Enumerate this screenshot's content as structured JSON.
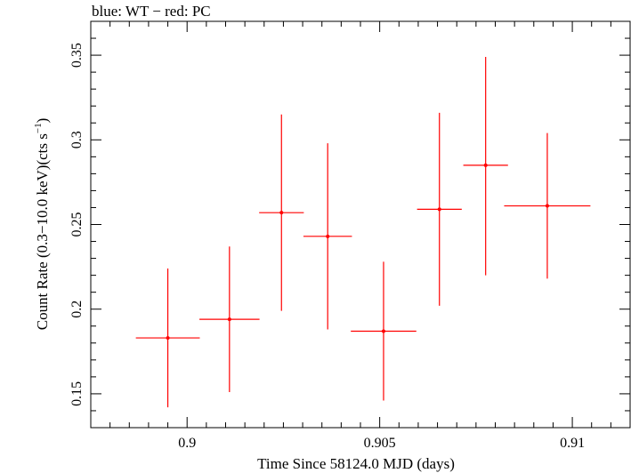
{
  "chart_data": {
    "type": "scatter",
    "title": "blue: WT − red: PC",
    "xlabel": "Time Since 58124.0 MJD (days)",
    "ylabel_main": "Count Rate (0.3−10.0 keV)(cts s",
    "ylabel_sup": "−1",
    "ylabel_close": ")",
    "xlim": [
      0.8975,
      0.9115
    ],
    "ylim": [
      0.13,
      0.37
    ],
    "xticks": [
      0.9,
      0.905,
      0.91
    ],
    "xtick_labels": [
      "0.9",
      "0.905",
      "0.91"
    ],
    "yticks": [
      0.15,
      0.2,
      0.25,
      0.3,
      0.35
    ],
    "ytick_labels": [
      "0.15",
      "0.2",
      "0.25",
      "0.3",
      "0.35"
    ],
    "grid": false,
    "series": [
      {
        "color": "#ff0000",
        "points": [
          {
            "x": 0.8995,
            "y": 0.183,
            "xerr": 0.00083,
            "yerr_low": 0.041,
            "yerr_high": 0.041
          },
          {
            "x": 0.9011,
            "y": 0.194,
            "xerr": 0.00078,
            "yerr_low": 0.043,
            "yerr_high": 0.043
          },
          {
            "x": 0.90245,
            "y": 0.257,
            "xerr": 0.00058,
            "yerr_low": 0.058,
            "yerr_high": 0.058
          },
          {
            "x": 0.90365,
            "y": 0.243,
            "xerr": 0.00063,
            "yerr_low": 0.055,
            "yerr_high": 0.055
          },
          {
            "x": 0.9051,
            "y": 0.187,
            "xerr": 0.00085,
            "yerr_low": 0.041,
            "yerr_high": 0.041
          },
          {
            "x": 0.90655,
            "y": 0.259,
            "xerr": 0.00058,
            "yerr_low": 0.057,
            "yerr_high": 0.057
          },
          {
            "x": 0.90775,
            "y": 0.285,
            "xerr": 0.00058,
            "yerr_low": 0.065,
            "yerr_high": 0.064
          },
          {
            "x": 0.90935,
            "y": 0.261,
            "xerr": 0.00112,
            "yerr_low": 0.043,
            "yerr_high": 0.043
          }
        ]
      }
    ]
  }
}
